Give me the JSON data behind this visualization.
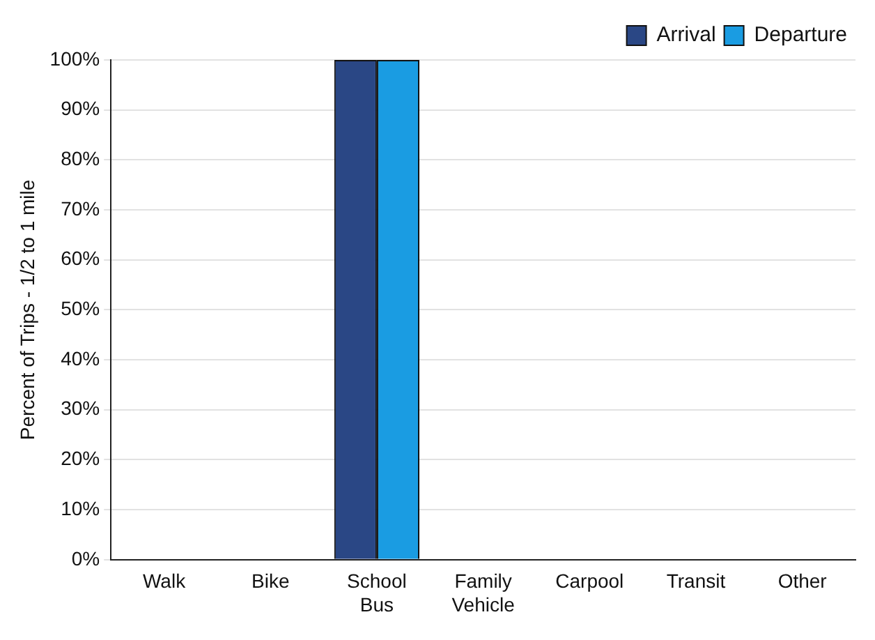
{
  "chart_data": {
    "type": "bar",
    "ylabel": "Percent of Trips - 1/2 to 1 mile",
    "categories": [
      "Walk",
      "Bike",
      "School Bus",
      "Family Vehicle",
      "Carpool",
      "Transit",
      "Other"
    ],
    "series": [
      {
        "name": "Arrival",
        "color": "#2a4785",
        "values": [
          0,
          0,
          100,
          0,
          0,
          0,
          0
        ]
      },
      {
        "name": "Departure",
        "color": "#1a9ce2",
        "values": [
          0,
          0,
          100,
          0,
          0,
          0,
          0
        ]
      }
    ],
    "ylim": [
      0,
      100
    ],
    "yticks": [
      {
        "value": 0,
        "label": "0%"
      },
      {
        "value": 10,
        "label": "10%"
      },
      {
        "value": 20,
        "label": "20%"
      },
      {
        "value": 30,
        "label": "30%"
      },
      {
        "value": 40,
        "label": "40%"
      },
      {
        "value": 50,
        "label": "50%"
      },
      {
        "value": 60,
        "label": "60%"
      },
      {
        "value": 70,
        "label": "70%"
      },
      {
        "value": 80,
        "label": "80%"
      },
      {
        "value": 90,
        "label": "90%"
      },
      {
        "value": 100,
        "label": "100%"
      }
    ],
    "grid": "y",
    "legend": "top right"
  }
}
